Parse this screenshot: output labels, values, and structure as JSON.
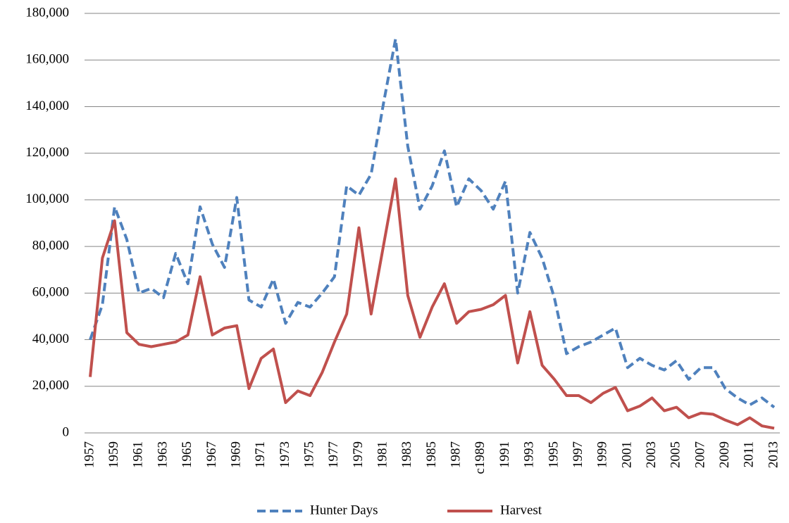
{
  "chart_data": {
    "type": "line",
    "categories": [
      "1957",
      null,
      "1959",
      null,
      "1961",
      null,
      "1963",
      null,
      "1965",
      null,
      "1967",
      null,
      "1969",
      null,
      "1971",
      null,
      "1973",
      null,
      "1975",
      null,
      "1977",
      null,
      "1979",
      null,
      "1981",
      null,
      "1983",
      null,
      "1985",
      null,
      "1987",
      null,
      "c1989",
      null,
      "1991",
      null,
      "1993",
      null,
      "1995",
      null,
      "1997",
      null,
      "1999",
      null,
      "2001",
      null,
      "2003",
      null,
      "2005",
      null,
      "2007",
      null,
      "2009",
      null,
      "2011",
      null,
      "2013"
    ],
    "series": [
      {
        "name": "Hunter Days",
        "color": "#4f81bd",
        "line_style": "dashed",
        "values": [
          40000,
          55000,
          97000,
          83000,
          60000,
          62000,
          58000,
          77000,
          64000,
          97000,
          81000,
          71000,
          101000,
          57000,
          54000,
          66000,
          47000,
          56000,
          54000,
          60000,
          67000,
          106000,
          102000,
          111000,
          141000,
          169000,
          123000,
          96000,
          106000,
          121000,
          97000,
          109000,
          104000,
          96000,
          108000,
          60000,
          86000,
          75000,
          58000,
          34000,
          37000,
          39000,
          42000,
          45000,
          28000,
          32000,
          29000,
          27000,
          31000,
          23000,
          28000,
          28000,
          19000,
          15000,
          12000,
          15000,
          11000
        ]
      },
      {
        "name": "Harvest",
        "color": "#c0504d",
        "line_style": "solid",
        "values": [
          24000,
          75000,
          91000,
          43000,
          38000,
          37000,
          38000,
          39000,
          42000,
          67000,
          42000,
          45000,
          46000,
          19000,
          32000,
          36000,
          13000,
          18000,
          16000,
          26000,
          39000,
          51000,
          88000,
          51000,
          80000,
          109000,
          59000,
          41000,
          54000,
          64000,
          47000,
          52000,
          53000,
          55000,
          59000,
          30000,
          52000,
          29000,
          23000,
          16000,
          16000,
          13000,
          17000,
          19500,
          9500,
          11500,
          15000,
          9500,
          11000,
          6500,
          8500,
          8000,
          5500,
          3500,
          6500,
          3000,
          2000
        ]
      }
    ],
    "ylim": [
      0,
      180000
    ],
    "yticks": [
      0,
      {
        "value": 20000,
        "label": "20,000"
      },
      {
        "value": 40000,
        "label": "40,000"
      },
      {
        "value": 60000,
        "label": "60,000"
      },
      {
        "value": 80000,
        "label": "80,000"
      },
      {
        "value": 100000,
        "label": "100,000"
      },
      {
        "value": 120000,
        "label": "120,000"
      },
      {
        "value": 140000,
        "label": "140,000"
      },
      {
        "value": 160000,
        "label": "160,000"
      },
      {
        "value": 180000,
        "label": "180,000"
      }
    ],
    "grid": true,
    "legend": "bottom"
  }
}
